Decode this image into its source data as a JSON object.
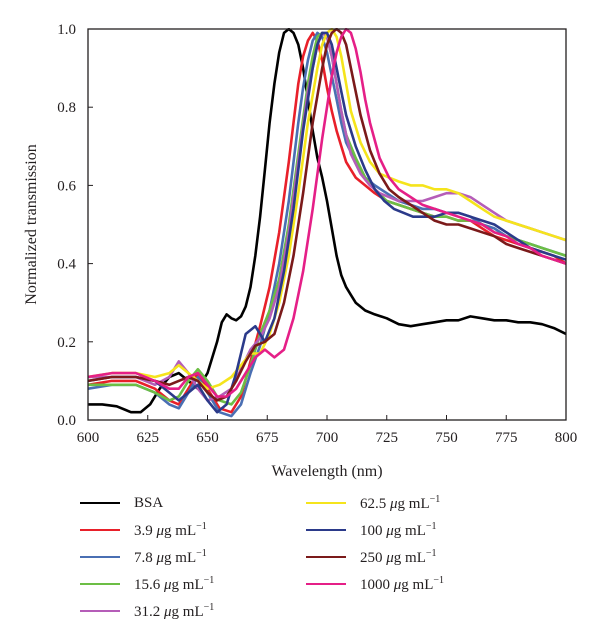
{
  "chart_data": {
    "type": "line",
    "title": "",
    "xlabel": "Wavelength (nm)",
    "ylabel": "Normalized transmission",
    "xlim": [
      600,
      800
    ],
    "ylim": [
      0.0,
      1.0
    ],
    "xticks": [
      600,
      625,
      650,
      675,
      700,
      725,
      750,
      775,
      800
    ],
    "yticks": [
      "0.0",
      "0.2",
      "0.4",
      "0.6",
      "0.8",
      "1.0"
    ],
    "grid": false,
    "legend_position": "bottom",
    "series": [
      {
        "name": "BSA",
        "color": "#000000",
        "x": [
          600,
          606,
          612,
          618,
          622,
          626,
          630,
          634,
          638,
          642,
          646,
          650,
          654,
          656,
          658,
          660,
          662,
          664,
          666,
          668,
          670,
          672,
          674,
          676,
          678,
          680,
          682,
          684,
          686,
          688,
          690,
          692,
          694,
          696,
          698,
          700,
          702,
          704,
          706,
          708,
          710,
          712,
          714,
          716,
          720,
          725,
          730,
          735,
          740,
          745,
          750,
          755,
          760,
          765,
          770,
          775,
          780,
          785,
          790,
          795,
          800
        ],
        "y": [
          0.04,
          0.04,
          0.035,
          0.02,
          0.02,
          0.04,
          0.08,
          0.11,
          0.12,
          0.1,
          0.08,
          0.12,
          0.2,
          0.25,
          0.27,
          0.26,
          0.255,
          0.265,
          0.29,
          0.34,
          0.42,
          0.52,
          0.64,
          0.76,
          0.86,
          0.94,
          0.99,
          1.0,
          0.99,
          0.96,
          0.9,
          0.82,
          0.74,
          0.67,
          0.62,
          0.56,
          0.49,
          0.42,
          0.37,
          0.34,
          0.32,
          0.3,
          0.29,
          0.28,
          0.27,
          0.26,
          0.245,
          0.24,
          0.245,
          0.25,
          0.255,
          0.255,
          0.265,
          0.26,
          0.255,
          0.255,
          0.25,
          0.25,
          0.245,
          0.235,
          0.22
        ]
      },
      {
        "name": "3.9 μg mL⁻¹",
        "color": "#e8202a",
        "x": [
          600,
          610,
          620,
          628,
          634,
          638,
          642,
          646,
          650,
          655,
          660,
          664,
          668,
          672,
          676,
          680,
          684,
          686,
          688,
          690,
          692,
          694,
          696,
          698,
          700,
          702,
          704,
          706,
          708,
          712,
          716,
          720,
          725,
          730,
          735,
          740,
          745,
          750,
          755,
          760,
          765,
          770,
          775,
          780,
          785,
          790,
          795,
          800
        ],
        "y": [
          0.09,
          0.1,
          0.1,
          0.08,
          0.05,
          0.04,
          0.08,
          0.12,
          0.08,
          0.03,
          0.02,
          0.06,
          0.15,
          0.24,
          0.34,
          0.48,
          0.66,
          0.76,
          0.86,
          0.93,
          0.97,
          0.99,
          0.97,
          0.92,
          0.85,
          0.79,
          0.74,
          0.7,
          0.66,
          0.62,
          0.6,
          0.58,
          0.56,
          0.55,
          0.54,
          0.53,
          0.52,
          0.52,
          0.51,
          0.51,
          0.49,
          0.47,
          0.46,
          0.45,
          0.44,
          0.43,
          0.42,
          0.4
        ]
      },
      {
        "name": "7.8 μg mL⁻¹",
        "color": "#4a6fb3",
        "x": [
          600,
          610,
          620,
          628,
          634,
          638,
          642,
          646,
          650,
          655,
          660,
          664,
          668,
          672,
          676,
          680,
          684,
          688,
          690,
          692,
          694,
          696,
          698,
          700,
          702,
          704,
          706,
          708,
          712,
          716,
          720,
          725,
          730,
          735,
          740,
          745,
          750,
          755,
          760,
          765,
          770,
          775,
          780,
          785,
          790,
          795,
          800
        ],
        "y": [
          0.08,
          0.09,
          0.09,
          0.07,
          0.04,
          0.03,
          0.07,
          0.11,
          0.07,
          0.02,
          0.01,
          0.04,
          0.12,
          0.19,
          0.28,
          0.4,
          0.56,
          0.76,
          0.85,
          0.92,
          0.97,
          0.99,
          0.98,
          0.94,
          0.88,
          0.82,
          0.76,
          0.71,
          0.66,
          0.62,
          0.6,
          0.58,
          0.56,
          0.55,
          0.54,
          0.54,
          0.53,
          0.53,
          0.52,
          0.5,
          0.49,
          0.47,
          0.46,
          0.45,
          0.44,
          0.43,
          0.42
        ]
      },
      {
        "name": "15.6 μg mL⁻¹",
        "color": "#6cbe45",
        "x": [
          600,
          610,
          620,
          628,
          634,
          638,
          642,
          646,
          650,
          655,
          660,
          664,
          668,
          672,
          676,
          680,
          684,
          688,
          692,
          694,
          696,
          698,
          700,
          702,
          704,
          706,
          708,
          712,
          716,
          720,
          725,
          730,
          735,
          740,
          745,
          750,
          755,
          760,
          765,
          770,
          775,
          780,
          785,
          790,
          795,
          800
        ],
        "y": [
          0.09,
          0.09,
          0.09,
          0.07,
          0.05,
          0.06,
          0.1,
          0.13,
          0.1,
          0.05,
          0.04,
          0.07,
          0.14,
          0.22,
          0.28,
          0.36,
          0.5,
          0.68,
          0.86,
          0.93,
          0.98,
          0.99,
          0.98,
          0.93,
          0.86,
          0.79,
          0.73,
          0.67,
          0.62,
          0.59,
          0.56,
          0.55,
          0.54,
          0.53,
          0.52,
          0.52,
          0.51,
          0.51,
          0.5,
          0.48,
          0.47,
          0.46,
          0.45,
          0.44,
          0.43,
          0.42
        ]
      },
      {
        "name": "31.2 μg mL⁻¹",
        "color": "#b55db8",
        "x": [
          600,
          610,
          620,
          628,
          634,
          638,
          642,
          646,
          650,
          655,
          660,
          664,
          668,
          672,
          676,
          680,
          684,
          688,
          692,
          696,
          698,
          700,
          702,
          704,
          706,
          708,
          710,
          714,
          718,
          722,
          726,
          730,
          735,
          740,
          745,
          750,
          755,
          760,
          765,
          770,
          775,
          780,
          785,
          790,
          795,
          800
        ],
        "y": [
          0.11,
          0.11,
          0.11,
          0.09,
          0.11,
          0.15,
          0.12,
          0.08,
          0.05,
          0.06,
          0.08,
          0.13,
          0.18,
          0.21,
          0.26,
          0.34,
          0.48,
          0.66,
          0.84,
          0.96,
          0.99,
          0.98,
          0.93,
          0.86,
          0.79,
          0.73,
          0.68,
          0.63,
          0.6,
          0.58,
          0.57,
          0.56,
          0.56,
          0.56,
          0.57,
          0.58,
          0.58,
          0.57,
          0.55,
          0.53,
          0.51,
          0.5,
          0.49,
          0.48,
          0.47,
          0.46
        ]
      },
      {
        "name": "62.5 μg mL⁻¹",
        "color": "#f5e41c",
        "x": [
          600,
          610,
          620,
          628,
          634,
          638,
          642,
          646,
          650,
          655,
          660,
          664,
          668,
          672,
          676,
          680,
          684,
          688,
          692,
          696,
          698,
          700,
          702,
          704,
          706,
          708,
          710,
          714,
          718,
          722,
          726,
          730,
          735,
          740,
          745,
          750,
          755,
          760,
          765,
          770,
          775,
          780,
          785,
          790,
          795,
          800
        ],
        "y": [
          0.11,
          0.12,
          0.12,
          0.11,
          0.12,
          0.14,
          0.12,
          0.1,
          0.08,
          0.09,
          0.11,
          0.14,
          0.17,
          0.17,
          0.22,
          0.3,
          0.42,
          0.58,
          0.76,
          0.9,
          0.96,
          0.99,
          1.0,
          0.98,
          0.93,
          0.86,
          0.79,
          0.71,
          0.66,
          0.63,
          0.62,
          0.61,
          0.6,
          0.6,
          0.59,
          0.59,
          0.58,
          0.56,
          0.54,
          0.52,
          0.51,
          0.5,
          0.49,
          0.48,
          0.47,
          0.46
        ]
      },
      {
        "name": "100 μg mL⁻¹",
        "color": "#2b3a8a",
        "x": [
          600,
          610,
          620,
          628,
          634,
          638,
          642,
          646,
          650,
          654,
          658,
          662,
          666,
          670,
          674,
          678,
          682,
          686,
          690,
          694,
          696,
          698,
          700,
          702,
          704,
          706,
          708,
          712,
          716,
          720,
          724,
          728,
          732,
          736,
          740,
          745,
          750,
          755,
          760,
          765,
          770,
          775,
          780,
          785,
          790,
          795,
          800
        ],
        "y": [
          0.1,
          0.11,
          0.11,
          0.1,
          0.07,
          0.05,
          0.07,
          0.09,
          0.05,
          0.02,
          0.04,
          0.12,
          0.22,
          0.24,
          0.2,
          0.26,
          0.38,
          0.54,
          0.74,
          0.9,
          0.96,
          0.99,
          0.99,
          0.96,
          0.9,
          0.84,
          0.78,
          0.7,
          0.64,
          0.59,
          0.56,
          0.54,
          0.53,
          0.52,
          0.52,
          0.52,
          0.53,
          0.53,
          0.52,
          0.51,
          0.5,
          0.48,
          0.46,
          0.44,
          0.43,
          0.42,
          0.41
        ]
      },
      {
        "name": "250 μg mL⁻¹",
        "color": "#7b1a1a",
        "x": [
          600,
          610,
          620,
          628,
          634,
          638,
          642,
          646,
          650,
          654,
          658,
          662,
          666,
          670,
          674,
          678,
          682,
          686,
          690,
          694,
          698,
          700,
          702,
          704,
          706,
          708,
          710,
          714,
          718,
          722,
          726,
          730,
          735,
          740,
          745,
          750,
          755,
          760,
          765,
          770,
          775,
          780,
          785,
          790,
          795,
          800
        ],
        "y": [
          0.1,
          0.11,
          0.11,
          0.1,
          0.09,
          0.1,
          0.11,
          0.1,
          0.07,
          0.05,
          0.06,
          0.1,
          0.15,
          0.19,
          0.2,
          0.22,
          0.3,
          0.42,
          0.58,
          0.76,
          0.9,
          0.96,
          0.99,
          1.0,
          0.99,
          0.96,
          0.9,
          0.78,
          0.69,
          0.63,
          0.59,
          0.57,
          0.55,
          0.53,
          0.51,
          0.5,
          0.5,
          0.49,
          0.48,
          0.47,
          0.45,
          0.44,
          0.43,
          0.42,
          0.41,
          0.4
        ]
      },
      {
        "name": "1000 μg mL⁻¹",
        "color": "#e51f87",
        "x": [
          600,
          610,
          620,
          628,
          634,
          638,
          642,
          646,
          650,
          654,
          658,
          662,
          666,
          670,
          674,
          678,
          682,
          686,
          690,
          694,
          698,
          702,
          704,
          706,
          708,
          710,
          712,
          714,
          716,
          718,
          722,
          726,
          730,
          735,
          740,
          745,
          750,
          755,
          760,
          765,
          770,
          775,
          780,
          785,
          790,
          795,
          800
        ],
        "y": [
          0.11,
          0.12,
          0.12,
          0.1,
          0.08,
          0.08,
          0.11,
          0.12,
          0.09,
          0.06,
          0.06,
          0.08,
          0.12,
          0.16,
          0.18,
          0.16,
          0.18,
          0.26,
          0.38,
          0.54,
          0.72,
          0.88,
          0.94,
          0.98,
          1.0,
          0.99,
          0.95,
          0.89,
          0.82,
          0.76,
          0.67,
          0.62,
          0.59,
          0.57,
          0.55,
          0.54,
          0.53,
          0.52,
          0.51,
          0.5,
          0.48,
          0.47,
          0.45,
          0.44,
          0.42,
          0.41,
          0.4
        ]
      }
    ]
  },
  "legend": {
    "items": [
      {
        "base": "BSA",
        "unit": false,
        "color": "#000000"
      },
      {
        "base": "3.9",
        "unit": true,
        "color": "#e8202a"
      },
      {
        "base": "7.8",
        "unit": true,
        "color": "#4a6fb3"
      },
      {
        "base": "15.6",
        "unit": true,
        "color": "#6cbe45"
      },
      {
        "base": "31.2",
        "unit": true,
        "color": "#b55db8"
      },
      {
        "base": "62.5",
        "unit": true,
        "color": "#f5e41c"
      },
      {
        "base": "100",
        "unit": true,
        "color": "#2b3a8a"
      },
      {
        "base": "250",
        "unit": true,
        "color": "#7b1a1a"
      },
      {
        "base": "1000",
        "unit": true,
        "color": "#e51f87"
      }
    ],
    "unit_mu": "μ",
    "unit_text": "g mL",
    "unit_exp": "−1"
  }
}
